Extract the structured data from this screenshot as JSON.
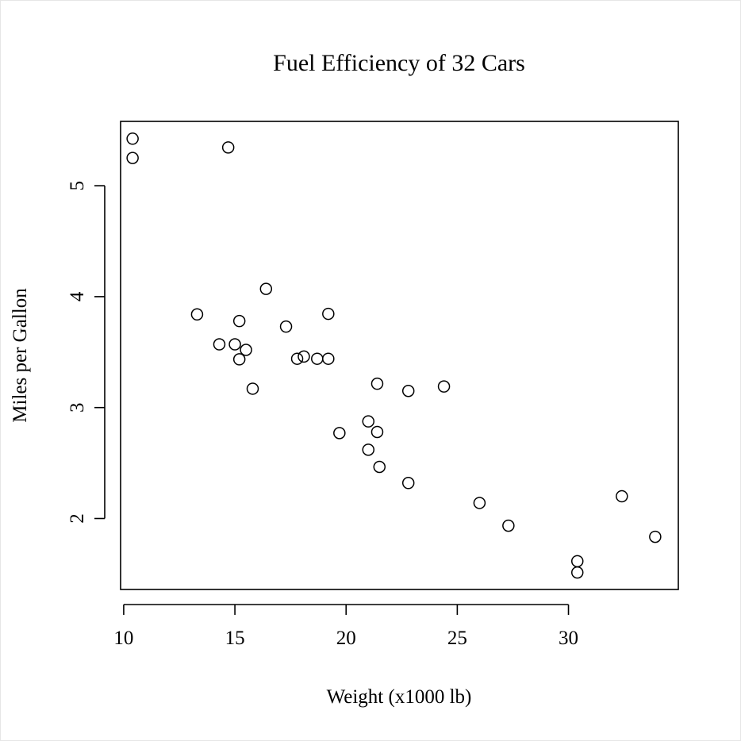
{
  "chart_data": {
    "type": "scatter",
    "title": "Fuel Efficiency of 32 Cars",
    "xlabel": "Weight (x1000 lb)",
    "ylabel": "Miles per Gallon",
    "x_ticks": [
      10,
      15,
      20,
      25,
      30
    ],
    "y_ticks": [
      2,
      3,
      4,
      5
    ],
    "xlim": [
      9.86,
      34.94
    ],
    "ylim": [
      1.36,
      5.58
    ],
    "grid": false,
    "point_color": "#000000",
    "series": [
      {
        "x": [
          21.0,
          21.0,
          22.8,
          21.4,
          18.7,
          18.1,
          14.3,
          24.4,
          22.8,
          19.2,
          17.8,
          16.4,
          17.3,
          15.2,
          10.4,
          10.4,
          14.7,
          32.4,
          30.4,
          33.9,
          21.5,
          15.5,
          15.2,
          13.3,
          19.2,
          27.3,
          26.0,
          30.4,
          15.8,
          19.7,
          15.0,
          21.4
        ],
        "y": [
          2.62,
          2.875,
          2.32,
          3.215,
          3.44,
          3.46,
          3.57,
          3.19,
          3.15,
          3.44,
          3.44,
          4.07,
          3.73,
          3.78,
          5.25,
          5.424,
          5.345,
          2.2,
          1.615,
          1.835,
          2.465,
          3.52,
          3.435,
          3.84,
          3.845,
          1.935,
          2.14,
          1.513,
          3.17,
          2.77,
          3.57,
          2.78
        ]
      }
    ]
  }
}
